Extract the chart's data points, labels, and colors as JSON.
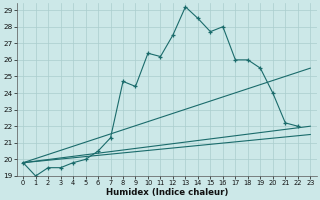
{
  "xlabel": "Humidex (Indice chaleur)",
  "bg_color": "#cce8e8",
  "line_color": "#1a6b6b",
  "grid_color": "#aacece",
  "xlim": [
    -0.5,
    23.5
  ],
  "ylim": [
    19,
    29.4
  ],
  "yticks": [
    19,
    20,
    21,
    22,
    23,
    24,
    25,
    26,
    27,
    28,
    29
  ],
  "xticks": [
    0,
    1,
    2,
    3,
    4,
    5,
    6,
    7,
    8,
    9,
    10,
    11,
    12,
    13,
    14,
    15,
    16,
    17,
    18,
    19,
    20,
    21,
    22,
    23
  ],
  "main_x": [
    0,
    1,
    2,
    3,
    4,
    5,
    6,
    7,
    8,
    9,
    10,
    11,
    12,
    13,
    14,
    15,
    16,
    17,
    18,
    19,
    20,
    21,
    22
  ],
  "main_y": [
    19.8,
    19.0,
    19.5,
    19.5,
    19.8,
    20.0,
    20.5,
    21.3,
    24.7,
    24.4,
    26.4,
    26.2,
    27.5,
    29.2,
    28.5,
    27.7,
    28.0,
    26.0,
    26.0,
    25.5,
    24.0,
    22.2,
    22.0
  ],
  "straight_lines": [
    {
      "x": [
        0,
        23
      ],
      "y": [
        19.8,
        22.0
      ]
    },
    {
      "x": [
        0,
        23
      ],
      "y": [
        19.8,
        21.5
      ]
    },
    {
      "x": [
        0,
        23
      ],
      "y": [
        19.8,
        25.5
      ]
    }
  ]
}
